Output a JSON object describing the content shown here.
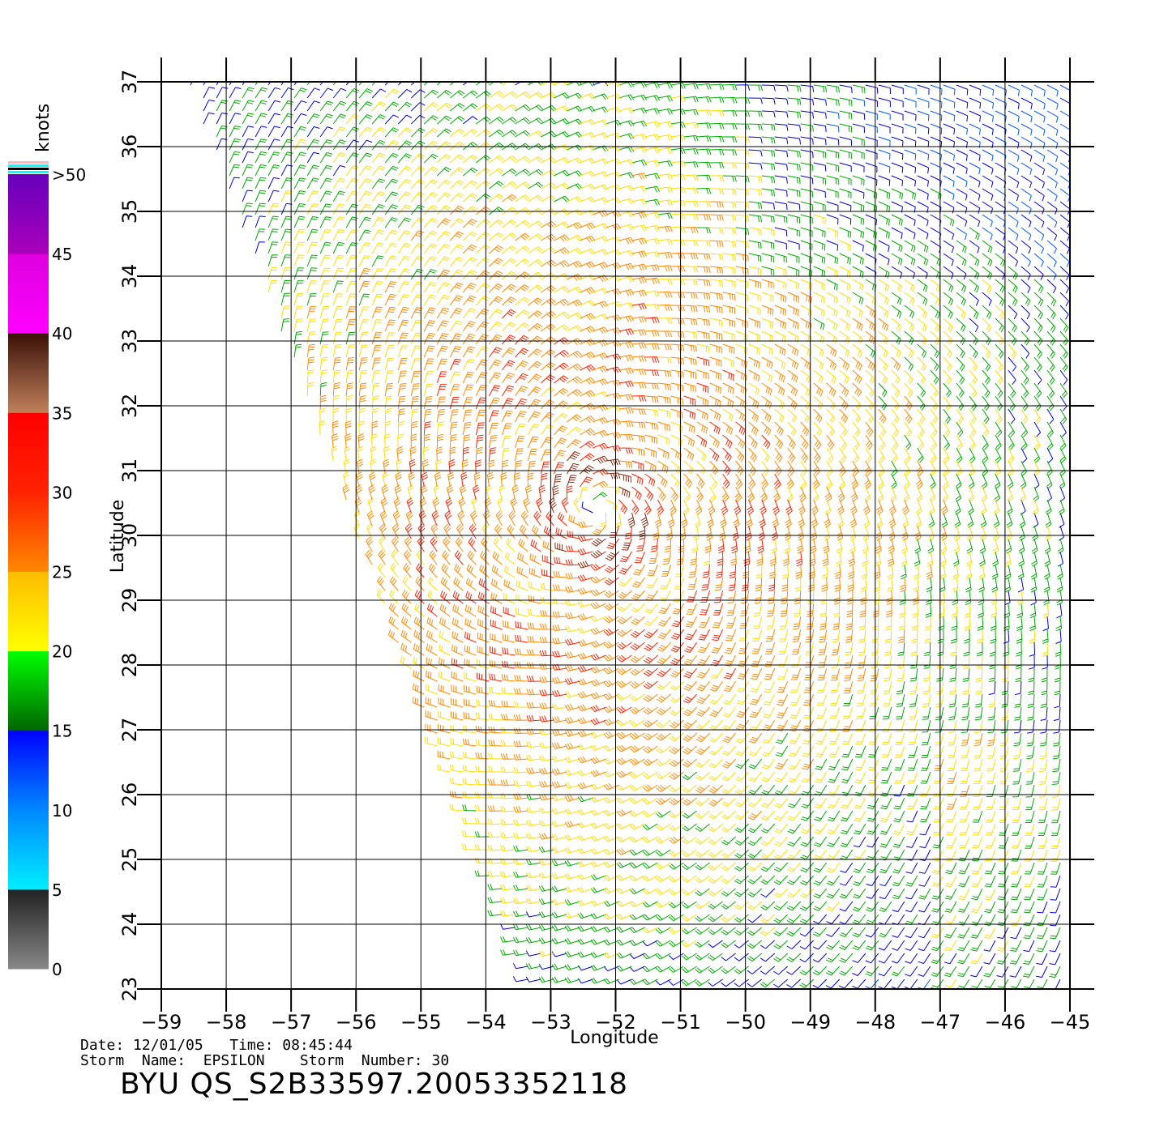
{
  "chart_data": {
    "type": "wind-barb-map",
    "xlabel": "Longitude",
    "ylabel": "Latitude",
    "xlim": [
      -59,
      -45
    ],
    "ylim": [
      23,
      37
    ],
    "x_ticks": [
      -59,
      -58,
      -57,
      -56,
      -55,
      -54,
      -53,
      -52,
      -51,
      -50,
      -49,
      -48,
      -47,
      -46,
      -45
    ],
    "y_ticks": [
      23,
      24,
      25,
      26,
      27,
      28,
      29,
      30,
      31,
      32,
      33,
      34,
      35,
      36,
      37
    ],
    "grid": true,
    "storm_center": {
      "lon": -52.3,
      "lat": 30.4
    },
    "colorbar": {
      "title": "knots",
      "labels": [
        "0",
        "5",
        "10",
        "15",
        "20",
        "25",
        "30",
        "35",
        "40",
        "45",
        ">50"
      ],
      "bands": [
        {
          "from": 0,
          "to": 5,
          "colors": [
            "#888888",
            "#222222"
          ]
        },
        {
          "from": 5,
          "to": 10,
          "colors": [
            "#00eeff",
            "#0088ff"
          ]
        },
        {
          "from": 10,
          "to": 15,
          "colors": [
            "#0088ff",
            "#0000ff"
          ]
        },
        {
          "from": 15,
          "to": 20,
          "colors": [
            "#006600",
            "#00ff00"
          ]
        },
        {
          "from": 20,
          "to": 25,
          "colors": [
            "#ffff00",
            "#ffbb00"
          ]
        },
        {
          "from": 25,
          "to": 30,
          "colors": [
            "#ff8800",
            "#ff2200"
          ]
        },
        {
          "from": 30,
          "to": 35,
          "colors": [
            "#ff2200",
            "#ff0000"
          ]
        },
        {
          "from": 35,
          "to": 40,
          "colors": [
            "#c0805a",
            "#3a1008"
          ]
        },
        {
          "from": 40,
          "to": 45,
          "colors": [
            "#ff00ff",
            "#dd00dd"
          ]
        },
        {
          "from": 45,
          "to": 50,
          "colors": [
            "#aa00bb",
            "#6600bb"
          ]
        }
      ],
      "barb_colors": {
        "lt10": "#0055ff",
        "lt15": "#0000dd",
        "lt20": "#00aa00",
        "lt25": "#ffdd00",
        "lt30": "#ff8800",
        "lt35": "#ff2200",
        "lt40": "#8b2a10",
        "ge40": "#cc00cc"
      }
    }
  },
  "info": {
    "date_line": "Date: 12/01/05   Time: 08:45:44",
    "storm_line": "Storm  Name:  EPSILON    Storm  Number: 30",
    "file_title": "BYU  QS_S2B33597.20053352118"
  }
}
